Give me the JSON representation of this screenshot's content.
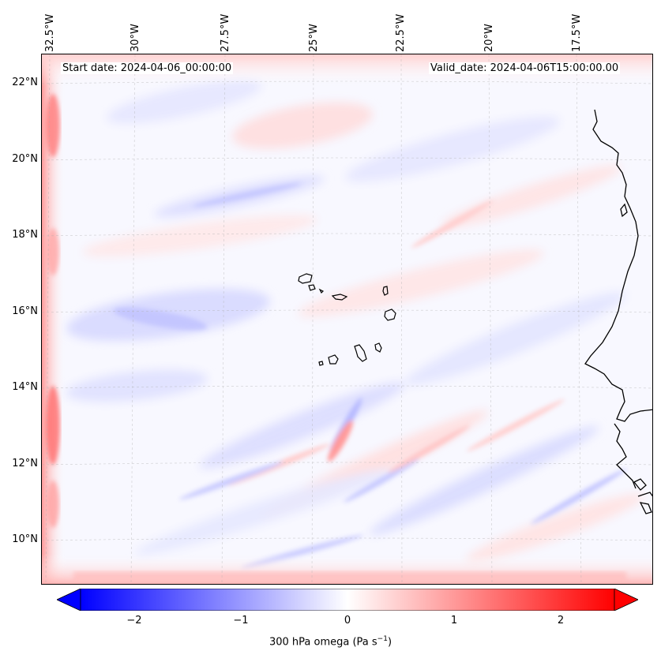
{
  "header": {
    "start_date": "Start date: 2024-04-06_00:00:00",
    "valid_date": "Valid_date: 2024-04-06T15:00:00.00"
  },
  "map": {
    "longitude_labels": [
      "32.5°W",
      "30°W",
      "27.5°W",
      "25°W",
      "22.5°W",
      "20°W",
      "17.5°W"
    ],
    "latitude_labels": [
      "22°N",
      "20°N",
      "18°N",
      "16°N",
      "14°N",
      "12°N",
      "10°N"
    ],
    "extent": {
      "lon_min": -32.6,
      "lon_max": -16.2,
      "lat_min": 8.9,
      "lat_max": 22.7
    },
    "field": "300 hPa omega",
    "colormap": "bwr",
    "coastline_color": "#000000"
  },
  "colorbar": {
    "ticks": [
      "−2",
      "−1",
      "0",
      "1",
      "2"
    ],
    "tick_values": [
      -2,
      -1,
      0,
      1,
      2
    ],
    "range": [
      -2.5,
      2.5
    ],
    "extend": "both",
    "label_prefix": "300 hPa omega (Pa s",
    "label_exp": "−1",
    "label_suffix": ")",
    "colors": {
      "low": "#0000ff",
      "mid": "#ffffff",
      "high": "#ff0000"
    }
  }
}
